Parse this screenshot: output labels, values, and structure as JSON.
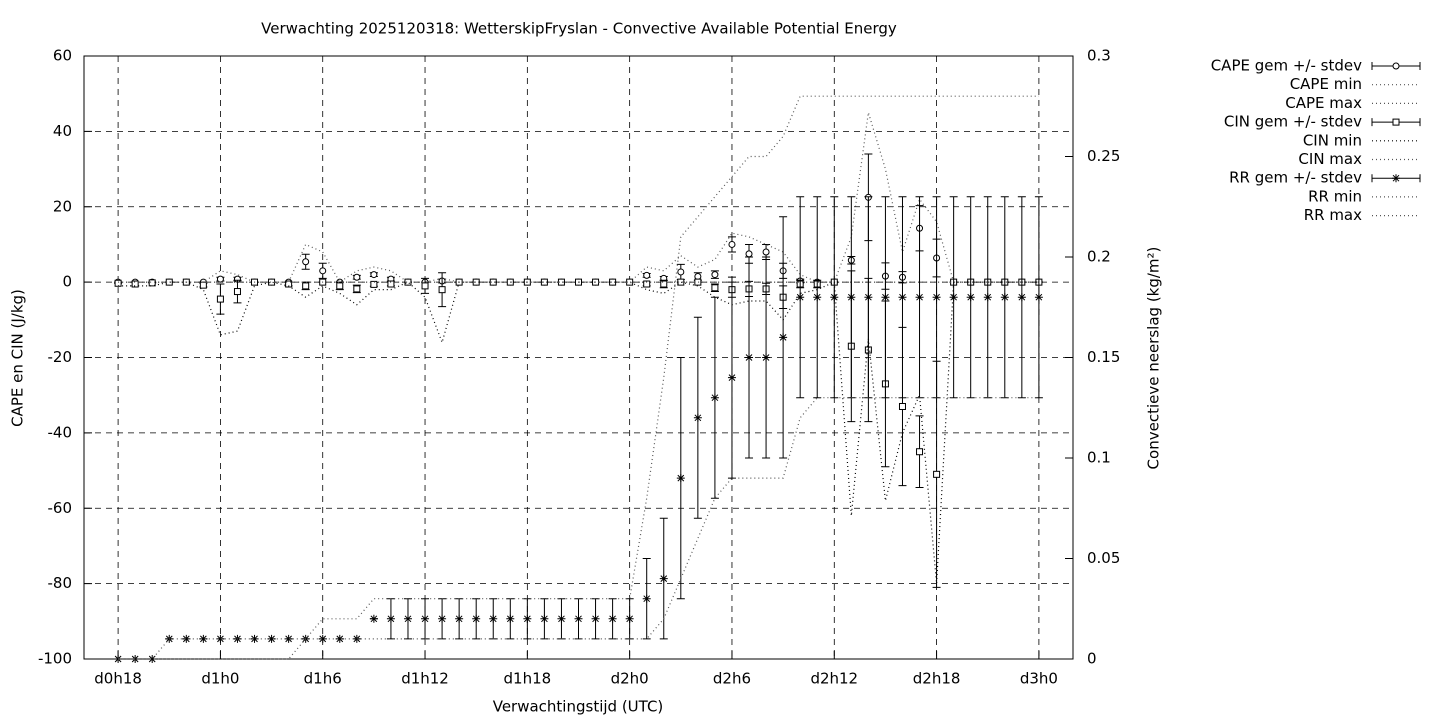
{
  "chart_data": {
    "type": "errorbar",
    "title": "Verwachting 2025120318: WetterskipFryslan - Convective Available Potential Energy",
    "xlabel": "Verwachtingstijd (UTC)",
    "ylabel": "CAPE en CIN (J/kg)",
    "y2label": "Convectieve neerslag (kg/m²)",
    "categories": [
      "d0h18",
      null,
      null,
      null,
      null,
      null,
      "d1h0",
      null,
      null,
      null,
      null,
      null,
      "d1h6",
      null,
      null,
      null,
      null,
      null,
      "d1h12",
      null,
      null,
      null,
      null,
      null,
      "d1h18",
      null,
      null,
      null,
      null,
      null,
      "d2h0",
      null,
      null,
      null,
      null,
      null,
      "d2h6",
      null,
      null,
      null,
      null,
      null,
      "d2h12",
      null,
      null,
      null,
      null,
      null,
      "d2h18",
      null,
      null,
      null,
      null,
      null,
      "d3h0"
    ],
    "ylim": [
      -100,
      60
    ],
    "yticks": [
      -100,
      -80,
      -60,
      -40,
      -20,
      0,
      20,
      40,
      60
    ],
    "y2lim": [
      0,
      0.3
    ],
    "y2ticks": [
      0,
      0.05,
      0.1,
      0.15,
      0.2,
      0.25,
      0.3
    ],
    "grid": true,
    "legend": "outside-top-right",
    "series": [
      {
        "name": "CAPE gem +/- stdev",
        "color": "#000000",
        "style": "errorbars",
        "marker": "circle",
        "axis": "y",
        "values": [
          0,
          0,
          0,
          0,
          0,
          0,
          0.8,
          0.8,
          0,
          0,
          0,
          5.4,
          3,
          0,
          1.3,
          2,
          0.8,
          0,
          0,
          0.3,
          0,
          0,
          0,
          0,
          0,
          0,
          0,
          0,
          0,
          0,
          0,
          1.8,
          1,
          2.7,
          1.5,
          2,
          10,
          7.5,
          8,
          3,
          0.3,
          0,
          0,
          5.8,
          22.5,
          1.6,
          1.3,
          14.3,
          6.4,
          0,
          0,
          0,
          0,
          0,
          0
        ],
        "errors": [
          0,
          0,
          0,
          0,
          0,
          0,
          0.5,
          0.5,
          0,
          0,
          0,
          2,
          2,
          0,
          0.5,
          0.5,
          0.5,
          0,
          0,
          0.5,
          0,
          0,
          0,
          0,
          0,
          0,
          0,
          0,
          0,
          0,
          0,
          0.5,
          0.5,
          2,
          1,
          1,
          2,
          2.5,
          2,
          2,
          0.5,
          0,
          0,
          1,
          11.5,
          3.5,
          1.5,
          6,
          5,
          0,
          0,
          0,
          0,
          0,
          0
        ]
      },
      {
        "name": "CAPE min",
        "color": "#555555",
        "style": "dotted",
        "axis": "y",
        "values": [
          0,
          0,
          0,
          0,
          0,
          0,
          0,
          0,
          0,
          0,
          0,
          0,
          0,
          0,
          0,
          0,
          0,
          0,
          0,
          0,
          0,
          0,
          0,
          0,
          0,
          0,
          0,
          0,
          0,
          0,
          0,
          0,
          0,
          0,
          0,
          0,
          0,
          0,
          0,
          0,
          0,
          0,
          0,
          0,
          0,
          0,
          0,
          0,
          0,
          0,
          0,
          0,
          0,
          0,
          0
        ]
      },
      {
        "name": "CAPE max",
        "color": "#555555",
        "style": "dotted",
        "axis": "y",
        "values": [
          0,
          0,
          0,
          0,
          0,
          0,
          3,
          2,
          0,
          0,
          0,
          10,
          8,
          0,
          3,
          4,
          3,
          0,
          0,
          1,
          0,
          0,
          0,
          0,
          0,
          0,
          0,
          0,
          0,
          0,
          0,
          4,
          3,
          7,
          4,
          6,
          13,
          12,
          10,
          8,
          2,
          0,
          0,
          12,
          45,
          30,
          8,
          22,
          16,
          0,
          0,
          0,
          0,
          0,
          0
        ]
      },
      {
        "name": "CIN gem +/- stdev",
        "color": "#000000",
        "style": "errorbars",
        "marker": "square",
        "axis": "y",
        "values": [
          -0.3,
          -0.5,
          -0.2,
          0,
          0,
          -0.8,
          -4.5,
          -2.5,
          0,
          0,
          -0.5,
          -1,
          0,
          -1,
          -1.8,
          -0.6,
          -0.5,
          0,
          -1,
          -2,
          0,
          0,
          0,
          0,
          0,
          0,
          0,
          0,
          0,
          0,
          0,
          -0.5,
          -0.5,
          0,
          0,
          -1.5,
          -2,
          -1.8,
          -1.8,
          -4,
          -0.5,
          -0.5,
          0,
          -17,
          -18,
          -27,
          -33,
          -45,
          -51,
          0,
          0,
          0,
          0,
          0,
          0
        ],
        "errors": [
          0,
          0.5,
          0,
          0,
          0,
          0.5,
          4,
          3,
          0,
          0,
          0.5,
          1,
          0,
          1,
          1,
          0.5,
          0.5,
          0,
          2,
          4.5,
          0,
          0,
          0,
          0,
          0,
          0,
          0,
          0,
          0,
          0,
          0,
          0.5,
          1,
          0,
          0,
          1,
          2,
          2,
          1.5,
          3,
          1,
          1,
          0,
          20,
          19,
          22,
          21,
          9.5,
          30,
          0,
          0,
          0,
          0,
          0,
          0
        ]
      },
      {
        "name": "CIN min",
        "color": "#000000",
        "style": "dotted",
        "axis": "y",
        "values": [
          -1,
          -1,
          -1,
          0,
          0,
          -2,
          -14,
          -13,
          -1,
          0,
          -1,
          -4,
          -1,
          -3,
          -6,
          -2,
          -2,
          0,
          -4,
          -16,
          0,
          0,
          0,
          0,
          0,
          0,
          0,
          0,
          0,
          0,
          0,
          -2,
          -3,
          0,
          -1,
          -4,
          -6,
          -5,
          -5,
          -10,
          -3,
          -2,
          0,
          -62,
          -15,
          -58,
          -40,
          -30,
          -80,
          0,
          0,
          0,
          0,
          0,
          0
        ]
      },
      {
        "name": "CIN max",
        "color": "#555555",
        "style": "dotted",
        "axis": "y",
        "values": [
          0,
          0,
          0,
          0,
          0,
          0,
          0,
          0,
          0,
          0,
          0,
          0,
          0,
          0,
          0,
          0,
          0,
          0,
          0,
          0,
          0,
          0,
          0,
          0,
          0,
          0,
          0,
          0,
          0,
          0,
          0,
          0,
          0,
          0,
          0,
          0,
          0,
          0,
          0,
          0,
          0,
          0,
          0,
          0,
          0,
          0,
          0,
          0,
          0,
          0,
          0,
          0,
          0,
          0,
          0
        ]
      },
      {
        "name": "RR gem +/- stdev",
        "color": "#000000",
        "style": "errorbars",
        "marker": "asterisk",
        "axis": "y2",
        "values": [
          0,
          0,
          0,
          0.01,
          0.01,
          0.01,
          0.01,
          0.01,
          0.01,
          0.01,
          0.01,
          0.01,
          0.01,
          0.01,
          0.01,
          0.02,
          0.02,
          0.02,
          0.02,
          0.02,
          0.02,
          0.02,
          0.02,
          0.02,
          0.02,
          0.02,
          0.02,
          0.02,
          0.02,
          0.02,
          0.02,
          0.03,
          0.04,
          0.09,
          0.12,
          0.13,
          0.14,
          0.15,
          0.15,
          0.16,
          0.18,
          0.18,
          0.18,
          0.18,
          0.18,
          0.18,
          0.18,
          0.18,
          0.18,
          0.18,
          0.18,
          0.18,
          0.18,
          0.18,
          0.18
        ],
        "errors": [
          0,
          0,
          0,
          0,
          0,
          0,
          0,
          0,
          0,
          0,
          0,
          0,
          0,
          0,
          0,
          0,
          0.01,
          0.01,
          0.01,
          0.01,
          0.01,
          0.01,
          0.01,
          0.01,
          0.01,
          0.01,
          0.01,
          0.01,
          0.01,
          0.01,
          0.01,
          0.02,
          0.03,
          0.06,
          0.05,
          0.05,
          0.05,
          0.05,
          0.05,
          0.06,
          0.05,
          0.05,
          0.05,
          0.05,
          0.05,
          0.05,
          0.05,
          0.05,
          0.05,
          0.05,
          0.05,
          0.05,
          0.05,
          0.05,
          0.05
        ]
      },
      {
        "name": "RR min",
        "color": "#555555",
        "style": "dotted",
        "axis": "y2",
        "values": [
          0,
          0,
          0,
          0,
          0,
          0,
          0,
          0,
          0,
          0,
          0,
          0.01,
          0.01,
          0.01,
          0.01,
          0.01,
          0.01,
          0.01,
          0.01,
          0.01,
          0.01,
          0.01,
          0.01,
          0.01,
          0.01,
          0.01,
          0.01,
          0.01,
          0.01,
          0.01,
          0.01,
          0.01,
          0.02,
          0.04,
          0.06,
          0.08,
          0.09,
          0.09,
          0.09,
          0.09,
          0.12,
          0.13,
          0.13,
          0.13,
          0.13,
          0.13,
          0.13,
          0.13,
          0.13,
          0.13,
          0.13,
          0.13,
          0.13,
          0.13,
          0.13
        ]
      },
      {
        "name": "RR max",
        "color": "#555555",
        "style": "dotted",
        "axis": "y2",
        "values": [
          0,
          0,
          0,
          0.01,
          0.01,
          0.01,
          0.01,
          0.01,
          0.01,
          0.01,
          0.01,
          0.01,
          0.02,
          0.02,
          0.02,
          0.03,
          0.03,
          0.03,
          0.03,
          0.03,
          0.03,
          0.03,
          0.03,
          0.03,
          0.03,
          0.03,
          0.03,
          0.03,
          0.03,
          0.03,
          0.03,
          0.08,
          0.14,
          0.21,
          0.22,
          0.23,
          0.24,
          0.25,
          0.25,
          0.26,
          0.28,
          0.28,
          0.28,
          0.28,
          0.28,
          0.28,
          0.28,
          0.28,
          0.28,
          0.28,
          0.28,
          0.28,
          0.28,
          0.28,
          0.28
        ]
      }
    ]
  }
}
